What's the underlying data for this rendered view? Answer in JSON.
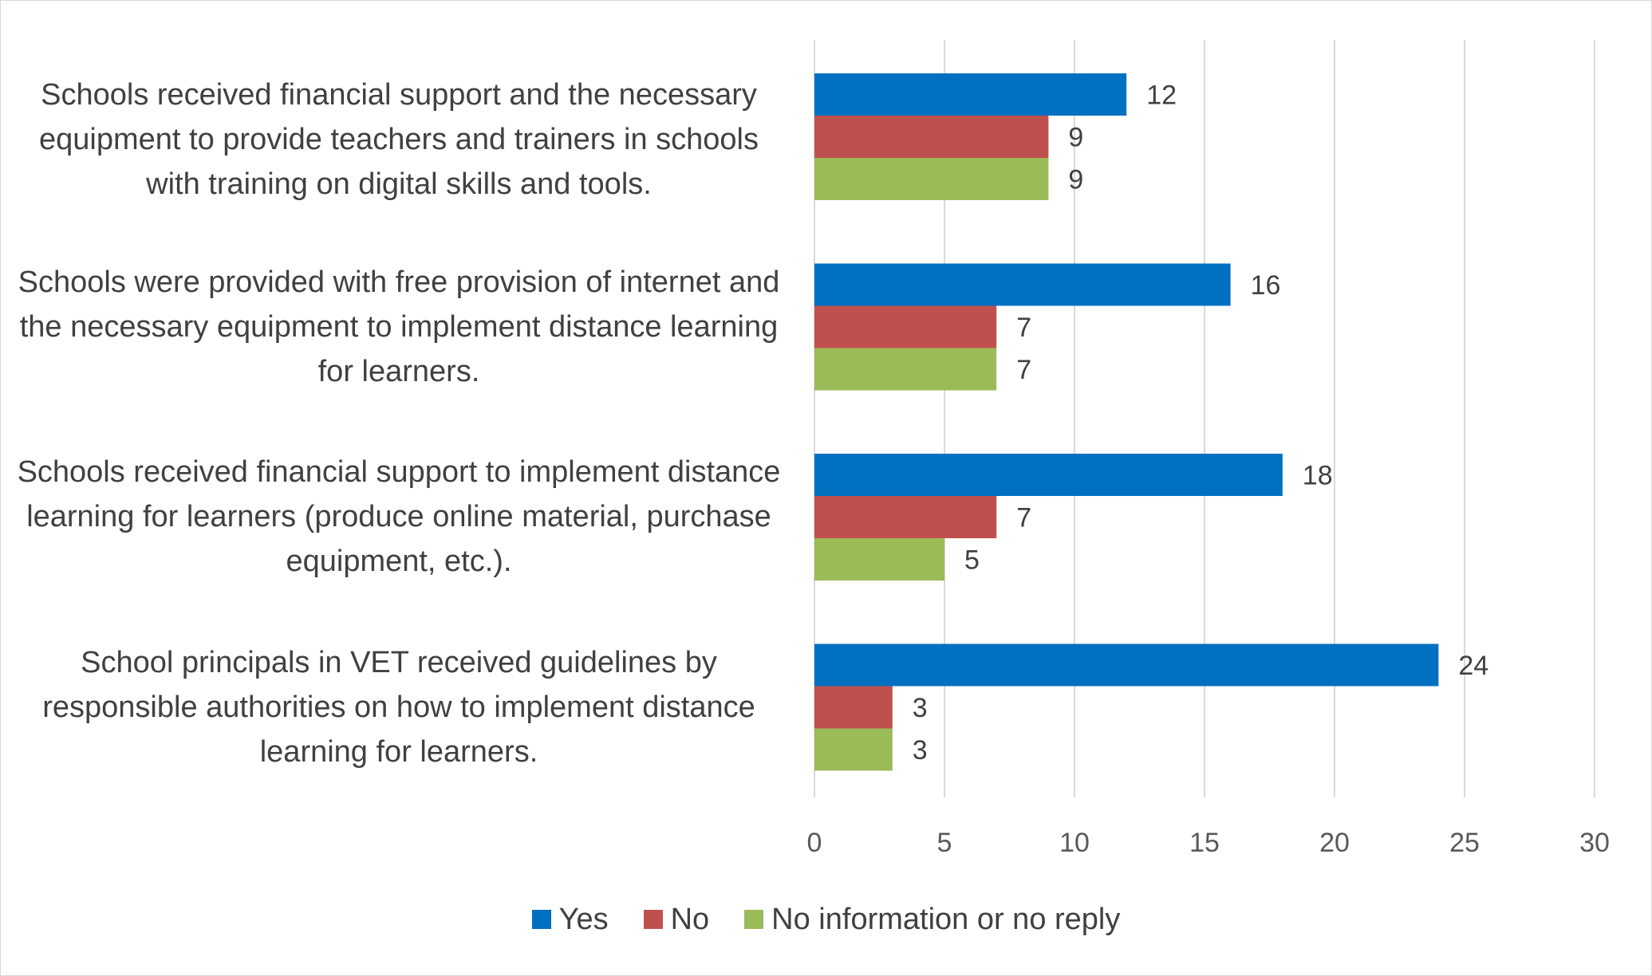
{
  "chart_data": {
    "type": "bar",
    "orientation": "horizontal",
    "categories": [
      "Schools received financial support and the necessary equipment to provide teachers and trainers in schools with training on digital skills and tools.",
      "Schools were provided with free provision of internet and the necessary equipment to implement distance learning for learners.",
      "Schools received financial support to implement distance learning for learners (produce online material, purchase equipment, etc.).",
      "School principals in VET received guidelines by responsible authorities on how to implement distance learning for learners."
    ],
    "series": [
      {
        "name": "Yes",
        "color": "#0070c0",
        "values": [
          12,
          16,
          18,
          24
        ]
      },
      {
        "name": "No",
        "color": "#c0504d",
        "values": [
          9,
          7,
          7,
          3
        ]
      },
      {
        "name": "No information or no reply",
        "color": "#9bbb59",
        "values": [
          9,
          7,
          5,
          3
        ]
      }
    ],
    "xlim": [
      0,
      30
    ],
    "xticks": [
      0,
      5,
      10,
      15,
      20,
      25,
      30
    ],
    "grid": true,
    "legend": "bottom",
    "data_labels": true
  }
}
